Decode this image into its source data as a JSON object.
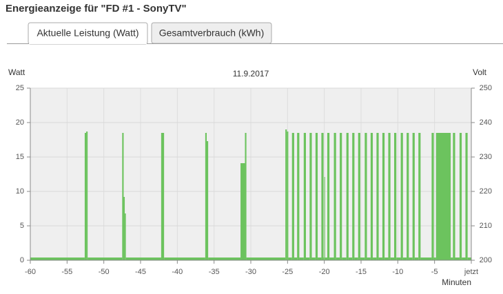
{
  "page": {
    "title": "Energieanzeige für \"FD #1 - SonyTV\"",
    "tabs": [
      {
        "label": "Aktuelle Leistung (Watt)",
        "active": true
      },
      {
        "label": "Gesamtverbrauch (kWh)",
        "active": false
      }
    ]
  },
  "chart_data": {
    "type": "step-area",
    "title": "11.9.2017",
    "ylabel": "Watt",
    "y2label": "Volt",
    "xlabel": "Minuten",
    "color": "#6cc35e",
    "grid": true,
    "xlim": [
      -60,
      0
    ],
    "xticks": [
      -60,
      -55,
      -50,
      -45,
      -40,
      -35,
      -30,
      -25,
      -20,
      -15,
      -10,
      -5,
      {
        "value": 0,
        "label": "jetzt"
      }
    ],
    "ylim": [
      0,
      25
    ],
    "yticks": [
      0,
      5,
      10,
      15,
      20,
      25
    ],
    "y2lim": [
      200,
      250
    ],
    "y2ticks": [
      200,
      210,
      220,
      230,
      240,
      250
    ],
    "x": [
      -60,
      -52.6,
      -52.4,
      -52.2,
      -47.5,
      -47.3,
      -47.15,
      -47.0,
      -42.2,
      -41.8,
      -36.2,
      -36.0,
      -35.8,
      -31.4,
      -30.8,
      -30.6,
      -25.3,
      -25.1,
      -24.9,
      -24.4,
      -24.1,
      -23.7,
      -23.4,
      -22.8,
      -22.5,
      -22.0,
      -21.7,
      -21.2,
      -20.9,
      -20.4,
      -20.1,
      -20.0,
      -19.9,
      -19.6,
      -19.3,
      -18.7,
      -18.4,
      -17.9,
      -17.6,
      -17.0,
      -16.7,
      -16.2,
      -15.9,
      -15.4,
      -15.1,
      -14.5,
      -14.2,
      -13.7,
      -13.4,
      -12.9,
      -12.6,
      -12.1,
      -11.8,
      -11.3,
      -11.0,
      -10.5,
      -10.2,
      -9.6,
      -9.3,
      -8.8,
      -8.5,
      -8.0,
      -7.7,
      -7.2,
      -6.9,
      -5.4,
      -5.1,
      -4.8,
      -2.8,
      -2.5,
      -2.2,
      -1.6,
      -1.3,
      -0.8,
      -0.5
    ],
    "values": [
      0.4,
      18.5,
      18.7,
      0.4,
      18.5,
      9.2,
      6.8,
      0.4,
      18.5,
      0.4,
      18.5,
      17.3,
      0.4,
      14.1,
      18.5,
      0.4,
      19,
      18.7,
      0.4,
      18.5,
      0.4,
      18.5,
      0.4,
      18.5,
      0.4,
      18.5,
      0.4,
      18.5,
      0.4,
      18.5,
      0.4,
      12.1,
      0.4,
      18.5,
      0.4,
      18.5,
      0.4,
      18.5,
      0.4,
      18.5,
      0.4,
      18.5,
      0.4,
      18.5,
      0.4,
      18.5,
      0.4,
      18.5,
      0.4,
      18.5,
      0.4,
      18.5,
      0.4,
      18.5,
      0.4,
      18.5,
      0.4,
      18.5,
      0.4,
      18.5,
      0.4,
      18.5,
      0.4,
      18.5,
      0.4,
      18.5,
      0.4,
      18.5,
      0.4,
      18.5,
      0.4,
      18.5,
      0.4,
      18.5,
      0.4
    ]
  }
}
